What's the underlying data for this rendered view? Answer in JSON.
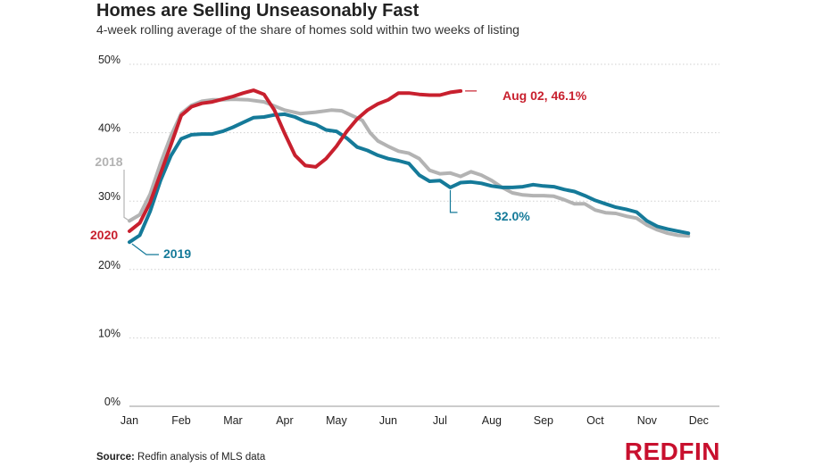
{
  "header": {
    "title": "Homes are Selling Unseasonably Fast",
    "subtitle": "4-week rolling average of the share of homes sold within two weeks of listing"
  },
  "footer": {
    "source_label": "Source:",
    "source_text": "Redfin analysis of MLS data",
    "logo_text": "REDFIN"
  },
  "chart_data": {
    "type": "line",
    "title": "Homes are Selling Unseasonably Fast",
    "subtitle": "4-week rolling average of the share of homes sold within two weeks of listing",
    "xlabel": "",
    "ylabel": "",
    "x_ticks": [
      "Jan",
      "Feb",
      "Mar",
      "Apr",
      "May",
      "Jun",
      "Jul",
      "Aug",
      "Sep",
      "Oct",
      "Nov",
      "Dec"
    ],
    "y_ticks": [
      "0%",
      "10%",
      "20%",
      "30%",
      "40%",
      "50%"
    ],
    "ylim": [
      0,
      50
    ],
    "grid": "horizontal-dotted",
    "series": [
      {
        "name": "2018",
        "color": "#b3b3b3",
        "points": [
          [
            0.0,
            27.1
          ],
          [
            0.2,
            28.0
          ],
          [
            0.4,
            31.0
          ],
          [
            0.6,
            35.5
          ],
          [
            0.8,
            39.5
          ],
          [
            1.0,
            42.8
          ],
          [
            1.2,
            44.0
          ],
          [
            1.4,
            44.6
          ],
          [
            1.6,
            44.8
          ],
          [
            1.8,
            44.8
          ],
          [
            2.0,
            44.9
          ],
          [
            2.3,
            44.8
          ],
          [
            2.6,
            44.5
          ],
          [
            2.8,
            43.9
          ],
          [
            3.0,
            43.3
          ],
          [
            3.3,
            42.8
          ],
          [
            3.6,
            43.0
          ],
          [
            3.9,
            43.3
          ],
          [
            4.1,
            43.2
          ],
          [
            4.3,
            42.5
          ],
          [
            4.5,
            41.8
          ],
          [
            4.65,
            40.0
          ],
          [
            4.8,
            38.8
          ],
          [
            5.0,
            38.0
          ],
          [
            5.2,
            37.3
          ],
          [
            5.4,
            37.0
          ],
          [
            5.6,
            36.2
          ],
          [
            5.8,
            34.5
          ],
          [
            6.0,
            34.0
          ],
          [
            6.2,
            34.1
          ],
          [
            6.4,
            33.6
          ],
          [
            6.6,
            34.3
          ],
          [
            6.8,
            33.8
          ],
          [
            7.0,
            33.0
          ],
          [
            7.2,
            32.0
          ],
          [
            7.4,
            31.2
          ],
          [
            7.6,
            30.9
          ],
          [
            7.8,
            30.8
          ],
          [
            8.0,
            30.8
          ],
          [
            8.2,
            30.7
          ],
          [
            8.4,
            30.2
          ],
          [
            8.6,
            29.6
          ],
          [
            8.8,
            29.6
          ],
          [
            9.0,
            28.7
          ],
          [
            9.2,
            28.3
          ],
          [
            9.4,
            28.2
          ],
          [
            9.6,
            27.8
          ],
          [
            9.8,
            27.5
          ],
          [
            10.0,
            26.5
          ],
          [
            10.2,
            25.8
          ],
          [
            10.4,
            25.3
          ],
          [
            10.6,
            25.0
          ],
          [
            10.8,
            24.9
          ]
        ]
      },
      {
        "name": "2019",
        "color": "#157a99",
        "points": [
          [
            0.0,
            24.0
          ],
          [
            0.2,
            25.0
          ],
          [
            0.4,
            28.5
          ],
          [
            0.6,
            33.0
          ],
          [
            0.8,
            36.6
          ],
          [
            1.0,
            39.1
          ],
          [
            1.2,
            39.7
          ],
          [
            1.4,
            39.8
          ],
          [
            1.6,
            39.8
          ],
          [
            1.8,
            40.2
          ],
          [
            2.0,
            40.8
          ],
          [
            2.2,
            41.5
          ],
          [
            2.4,
            42.2
          ],
          [
            2.6,
            42.3
          ],
          [
            2.8,
            42.6
          ],
          [
            3.0,
            42.7
          ],
          [
            3.2,
            42.3
          ],
          [
            3.4,
            41.6
          ],
          [
            3.6,
            41.2
          ],
          [
            3.8,
            40.4
          ],
          [
            4.0,
            40.2
          ],
          [
            4.2,
            39.2
          ],
          [
            4.4,
            37.9
          ],
          [
            4.6,
            37.4
          ],
          [
            4.8,
            36.7
          ],
          [
            5.0,
            36.2
          ],
          [
            5.2,
            35.9
          ],
          [
            5.4,
            35.5
          ],
          [
            5.6,
            33.8
          ],
          [
            5.8,
            32.9
          ],
          [
            6.0,
            33.0
          ],
          [
            6.2,
            32.0
          ],
          [
            6.4,
            32.7
          ],
          [
            6.6,
            32.8
          ],
          [
            6.8,
            32.6
          ],
          [
            7.0,
            32.2
          ],
          [
            7.2,
            32.0
          ],
          [
            7.4,
            32.0
          ],
          [
            7.6,
            32.1
          ],
          [
            7.8,
            32.4
          ],
          [
            8.0,
            32.2
          ],
          [
            8.2,
            32.1
          ],
          [
            8.4,
            31.7
          ],
          [
            8.6,
            31.4
          ],
          [
            8.8,
            30.8
          ],
          [
            9.0,
            30.1
          ],
          [
            9.2,
            29.6
          ],
          [
            9.4,
            29.1
          ],
          [
            9.6,
            28.8
          ],
          [
            9.8,
            28.4
          ],
          [
            10.0,
            27.1
          ],
          [
            10.2,
            26.3
          ],
          [
            10.4,
            25.9
          ],
          [
            10.6,
            25.6
          ],
          [
            10.8,
            25.3
          ]
        ]
      },
      {
        "name": "2020",
        "color": "#c8202e",
        "points": [
          [
            0.0,
            25.6
          ],
          [
            0.2,
            26.8
          ],
          [
            0.4,
            29.8
          ],
          [
            0.6,
            34.0
          ],
          [
            0.8,
            38.2
          ],
          [
            1.0,
            42.5
          ],
          [
            1.2,
            43.8
          ],
          [
            1.4,
            44.3
          ],
          [
            1.6,
            44.5
          ],
          [
            1.8,
            44.9
          ],
          [
            2.0,
            45.3
          ],
          [
            2.2,
            45.8
          ],
          [
            2.4,
            46.2
          ],
          [
            2.6,
            45.6
          ],
          [
            2.8,
            43.3
          ],
          [
            3.0,
            39.9
          ],
          [
            3.2,
            36.7
          ],
          [
            3.4,
            35.2
          ],
          [
            3.6,
            35.0
          ],
          [
            3.8,
            36.2
          ],
          [
            4.0,
            38.0
          ],
          [
            4.2,
            40.2
          ],
          [
            4.4,
            42.0
          ],
          [
            4.6,
            43.3
          ],
          [
            4.8,
            44.2
          ],
          [
            5.0,
            44.8
          ],
          [
            5.2,
            45.8
          ],
          [
            5.4,
            45.8
          ],
          [
            5.6,
            45.6
          ],
          [
            5.8,
            45.5
          ],
          [
            6.0,
            45.5
          ],
          [
            6.2,
            45.9
          ],
          [
            6.4,
            46.1
          ]
        ]
      }
    ],
    "annotations": [
      {
        "id": "label-2018",
        "text": "2018",
        "color": "#b3b3b3"
      },
      {
        "id": "label-2019",
        "text": "2019",
        "color": "#157a99"
      },
      {
        "id": "label-2020",
        "text": "2020",
        "color": "#c8202e"
      },
      {
        "id": "label-aug02",
        "text": "Aug 02, 46.1%",
        "color": "#c8202e"
      },
      {
        "id": "label-32",
        "text": "32.0%",
        "color": "#157a99"
      }
    ]
  }
}
